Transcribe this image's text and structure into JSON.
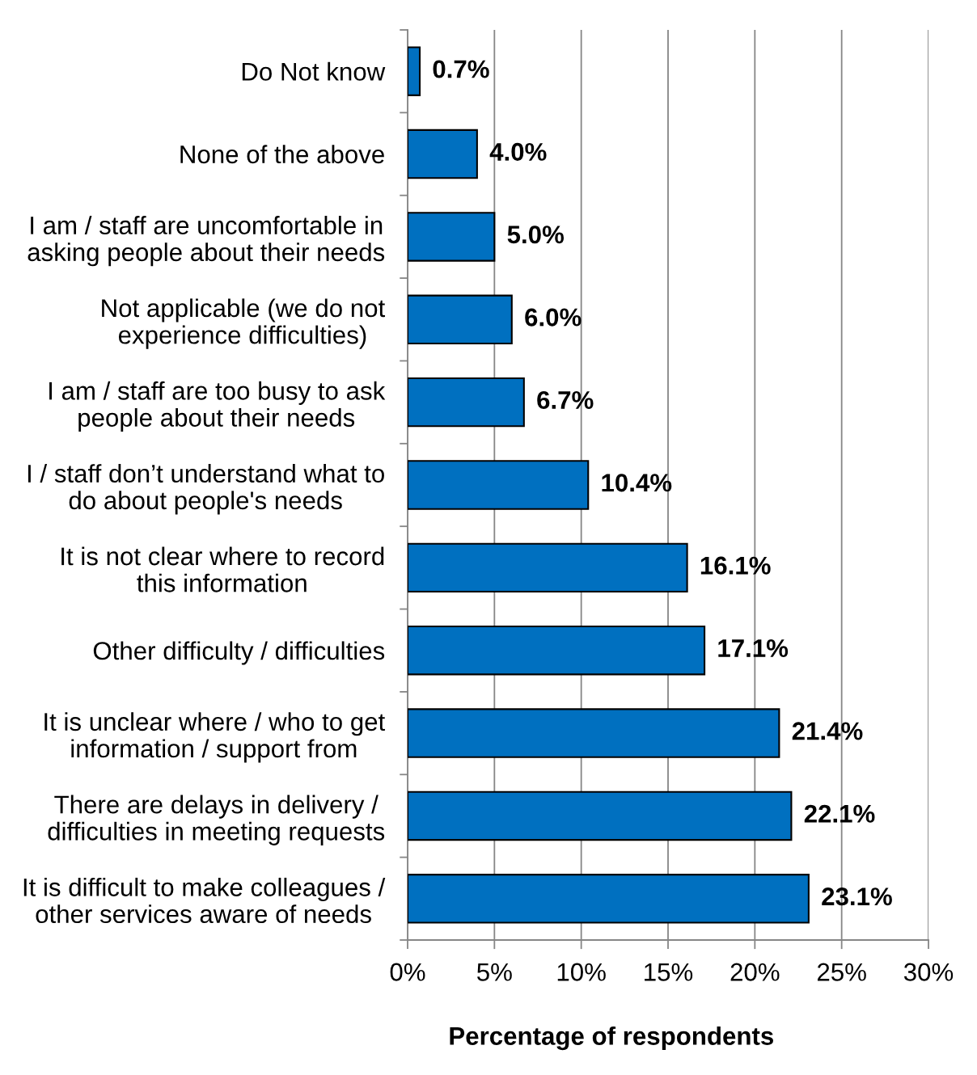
{
  "chart_data": {
    "type": "bar",
    "orientation": "horizontal",
    "categories": [
      "Do Not know",
      "None of the above",
      "I am / staff are uncomfortable in\nasking people about their needs",
      "Not applicable (we do not\nexperience difficulties)",
      "I am / staff are too busy to ask\npeople about their needs",
      "I / staff don’t understand what to\ndo about people's needs",
      "It is not clear where to record\nthis information",
      "Other difficulty / difficulties",
      "It is unclear where / who to get\ninformation / support from",
      "There are delays in delivery /\ndifficulties in meeting requests",
      "It is difficult to make colleagues /\nother services aware of needs"
    ],
    "values": [
      0.7,
      4.0,
      5.0,
      6.0,
      6.7,
      10.4,
      16.1,
      17.1,
      21.4,
      22.1,
      23.1
    ],
    "value_labels": [
      "0.7%",
      "4.0%",
      "5.0%",
      "6.0%",
      "6.7%",
      "10.4%",
      "16.1%",
      "17.1%",
      "21.4%",
      "22.1%",
      "23.1%"
    ],
    "color": "#0070c0",
    "xlabel": "Percentage of respondents",
    "xlim": [
      0,
      30
    ],
    "xticks": [
      {
        "value": 0,
        "label": "0%"
      },
      {
        "value": 5,
        "label": "5%"
      },
      {
        "value": 10,
        "label": "10%"
      },
      {
        "value": 15,
        "label": "15%"
      },
      {
        "value": 20,
        "label": "20%"
      },
      {
        "value": 25,
        "label": "25%"
      },
      {
        "value": 30,
        "label": "30%"
      }
    ],
    "grid": "x"
  }
}
